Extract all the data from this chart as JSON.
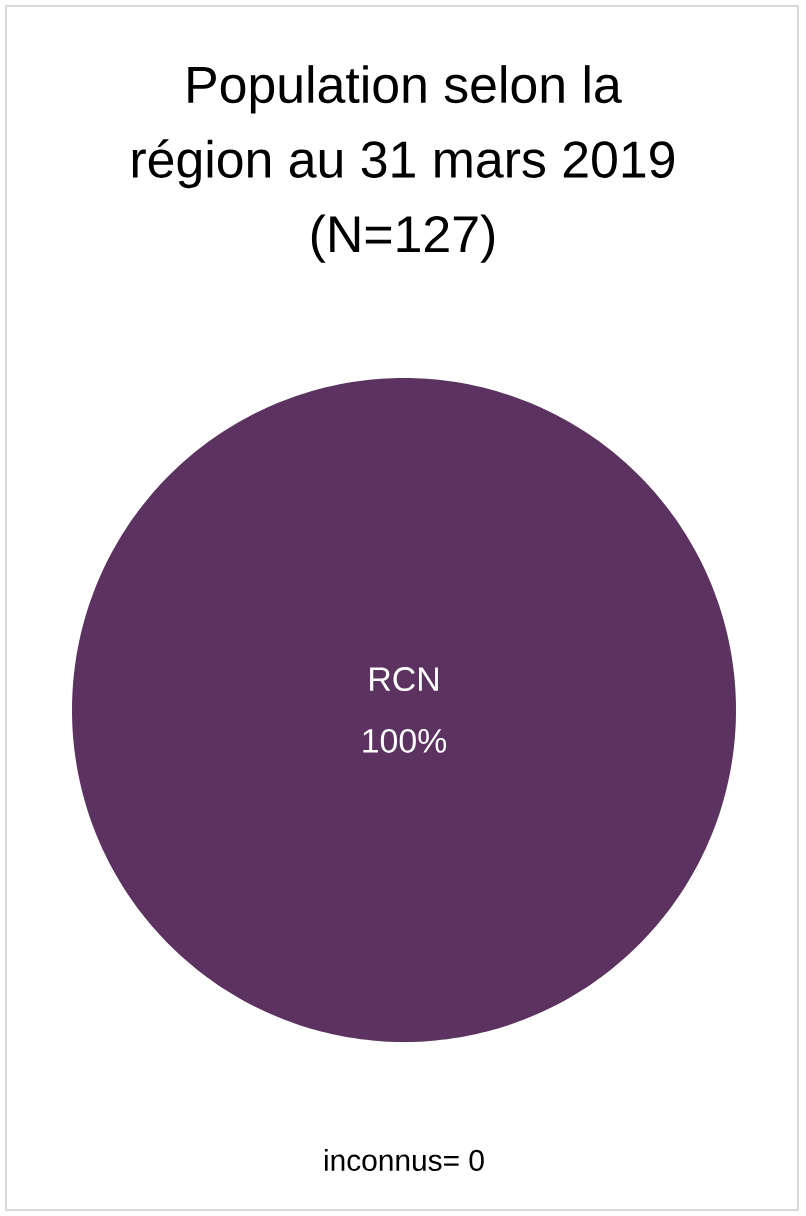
{
  "chart_data": {
    "type": "pie",
    "title": "Population selon la région au 31 mars 2019 (N=127)",
    "categories": [
      "RCN"
    ],
    "values": [
      100
    ],
    "colors": [
      "#5c3360"
    ],
    "value_labels": [
      "100%"
    ],
    "annotations": [
      "inconnus= 0"
    ]
  }
}
